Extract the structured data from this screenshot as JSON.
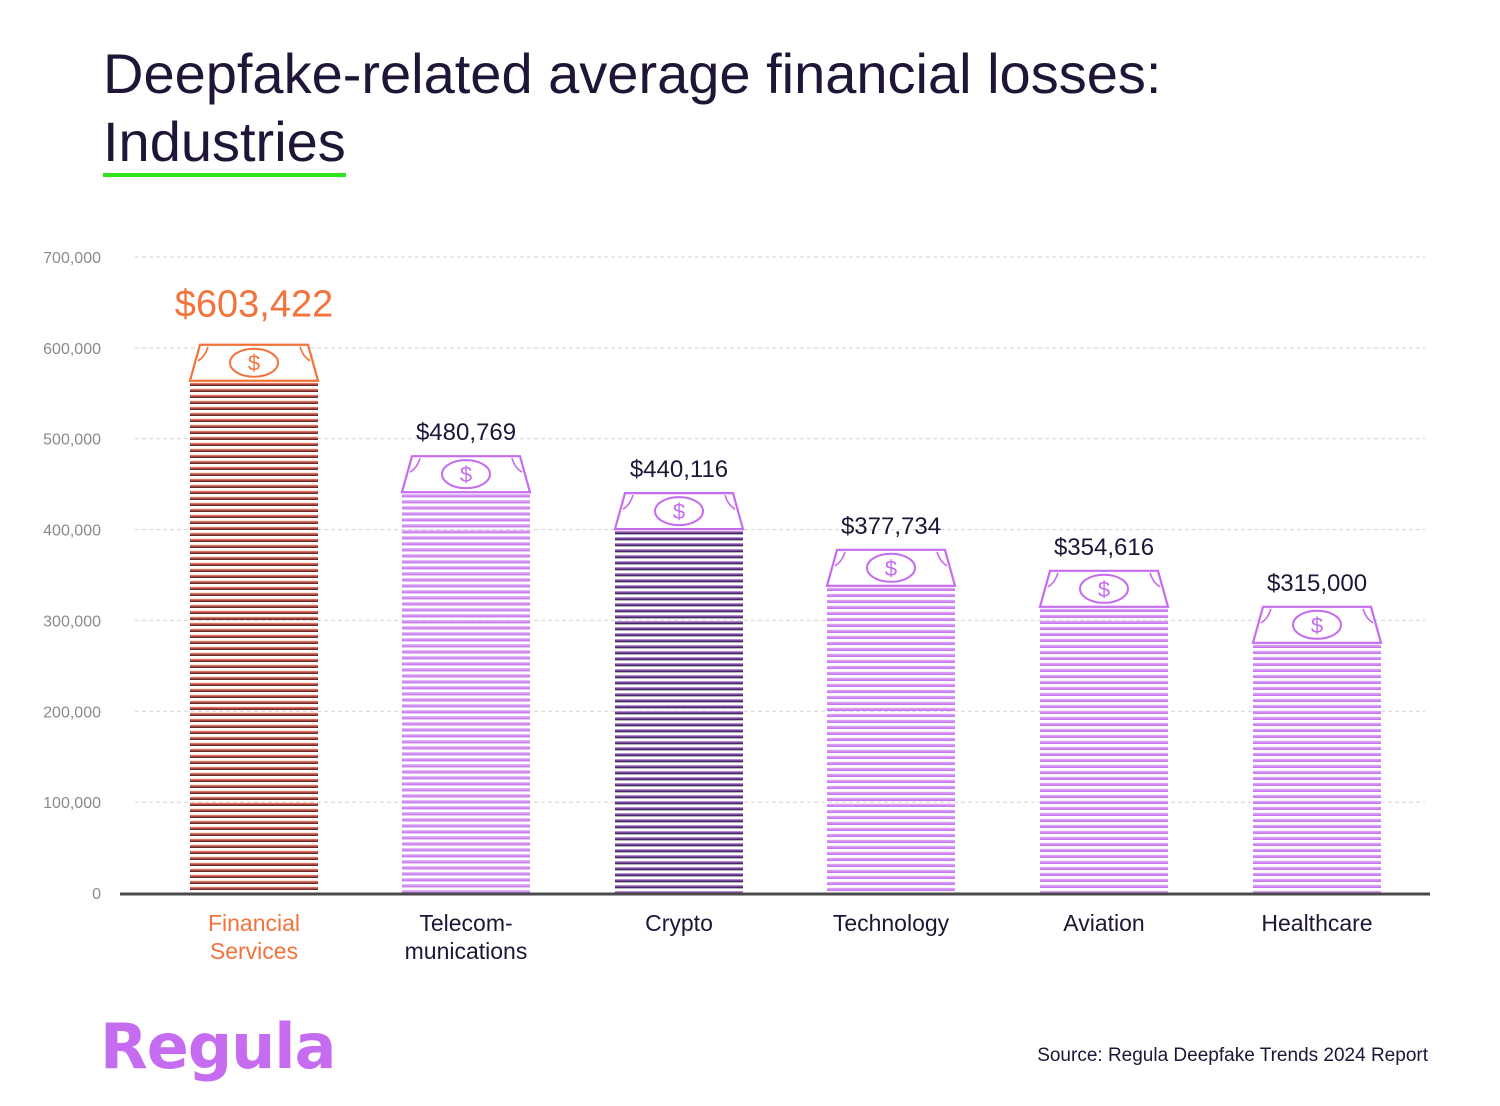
{
  "title": {
    "line1": "Deepfake-related average financial losses:",
    "line2": "Industries"
  },
  "logo": "Regula",
  "source": "Source: Regula Deepfake Trends 2024 Report",
  "colors": {
    "highlight": "#f4733b",
    "bar": "#c56cf0",
    "crypto_dark": "#1b1030",
    "title": "#1f1536",
    "underline": "#2ee51f",
    "axis_text": "#8a8a8a"
  },
  "chart_data": {
    "type": "bar",
    "categories": [
      "Financial Services",
      "Telecom-munications",
      "Crypto",
      "Technology",
      "Aviation",
      "Healthcare"
    ],
    "category_lines": [
      [
        "Financial",
        "Services"
      ],
      [
        "Telecom-",
        "munications"
      ],
      [
        "Crypto"
      ],
      [
        "Technology"
      ],
      [
        "Aviation"
      ],
      [
        "Healthcare"
      ]
    ],
    "values": [
      603422,
      480769,
      440116,
      377734,
      354616,
      315000
    ],
    "value_labels": [
      "$603,422",
      "$480,769",
      "$440,116",
      "$377,734",
      "$354,616",
      "$315,000"
    ],
    "highlight_index": 0,
    "dark_index": 2,
    "ylim": [
      0,
      700000
    ],
    "yticks": [
      0,
      100000,
      200000,
      300000,
      400000,
      500000,
      600000,
      700000
    ],
    "ytick_labels": [
      "0",
      "100,000",
      "200,000",
      "300,000",
      "400,000",
      "500,000",
      "600,000",
      "700,000"
    ],
    "grid": true,
    "bar_style": "stacked banknotes with dollar-sign top note"
  }
}
